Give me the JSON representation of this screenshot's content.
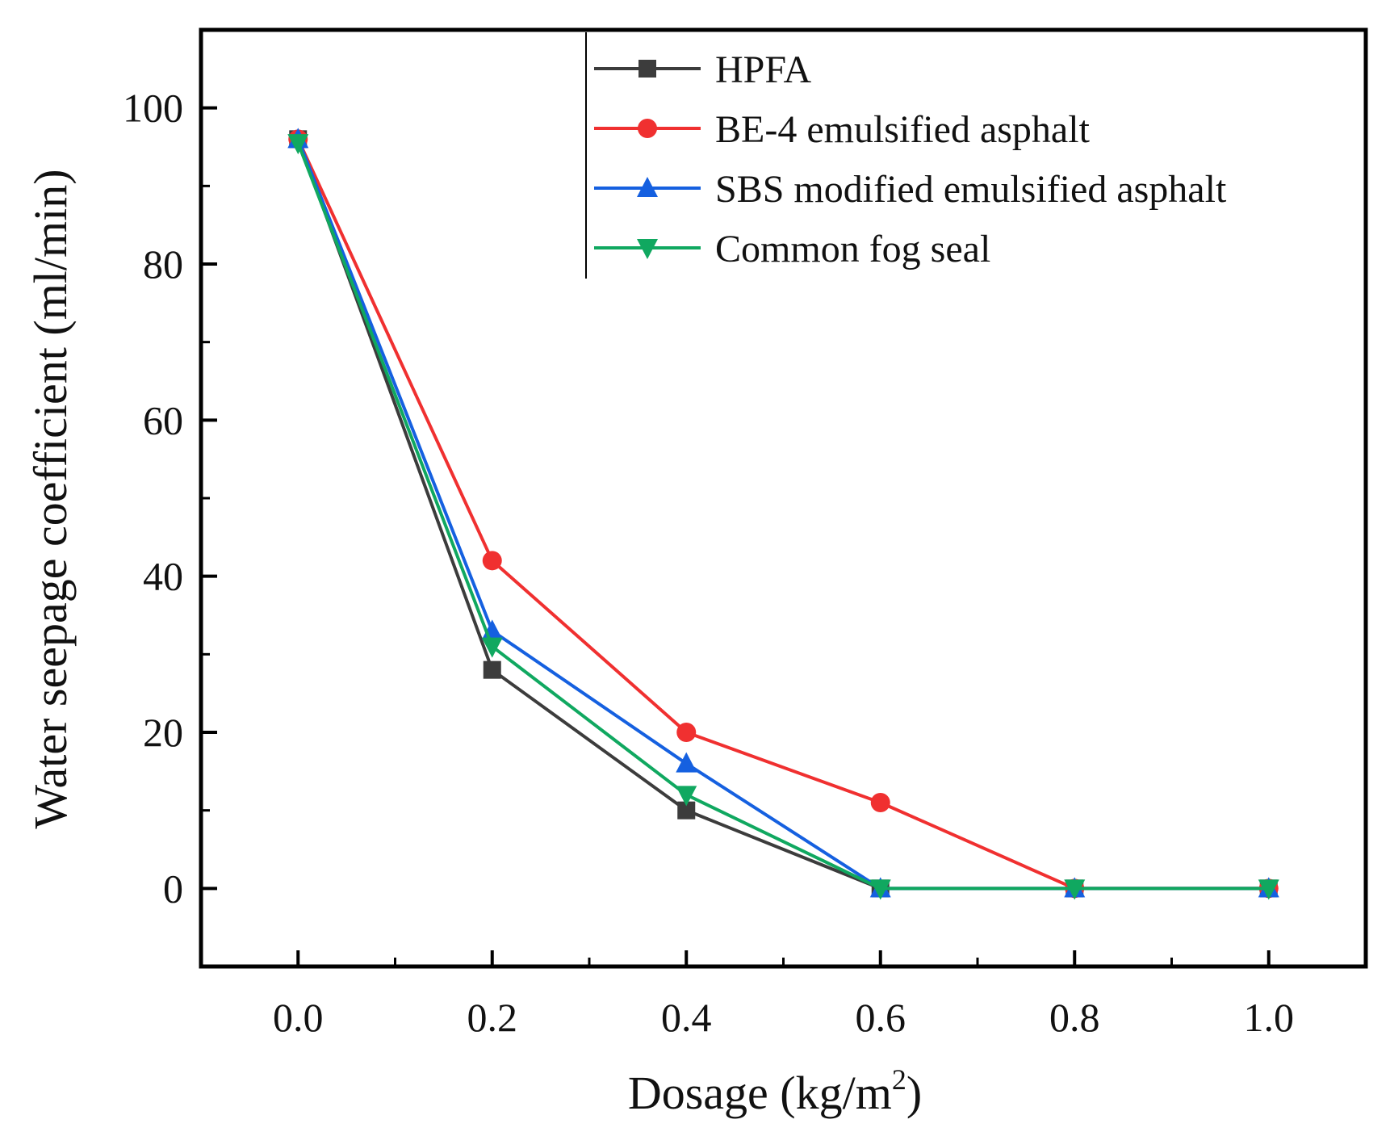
{
  "chart_data": {
    "type": "line",
    "xlabel": "Dosage (kg/m",
    "xlabel_sup": "2",
    "xlabel_end": ")",
    "ylabel": "Water seepage coefficient (ml/min)",
    "xlim": [
      -0.1,
      1.1
    ],
    "ylim": [
      -10,
      110
    ],
    "xticks": [
      0.0,
      0.2,
      0.4,
      0.6,
      0.8,
      1.0
    ],
    "xtick_labels": [
      "0.0",
      "0.2",
      "0.4",
      "0.6",
      "0.8",
      "1.0"
    ],
    "yticks": [
      0,
      20,
      40,
      60,
      80,
      100
    ],
    "ytick_labels": [
      "0",
      "20",
      "40",
      "60",
      "80",
      "100"
    ],
    "grid": false,
    "legend_position": "top-right",
    "x": [
      0.0,
      0.2,
      0.4,
      0.6,
      0.8,
      1.0
    ],
    "series": [
      {
        "name": "HPFA",
        "color": "#3c3c3c",
        "marker": "square",
        "values": [
          96,
          28,
          10,
          0,
          0,
          0
        ]
      },
      {
        "name": "BE-4 emulsified asphalt",
        "color": "#f03030",
        "marker": "circle",
        "values": [
          96,
          42,
          20,
          11,
          0,
          0
        ]
      },
      {
        "name": "SBS modified emulsified asphalt",
        "color": "#1560e0",
        "marker": "triangle-up",
        "values": [
          96,
          33,
          16,
          0,
          0,
          0
        ]
      },
      {
        "name": "Common fog seal",
        "color": "#10a860",
        "marker": "triangle-down",
        "values": [
          95.5,
          31,
          12,
          0,
          0,
          0
        ]
      }
    ]
  }
}
